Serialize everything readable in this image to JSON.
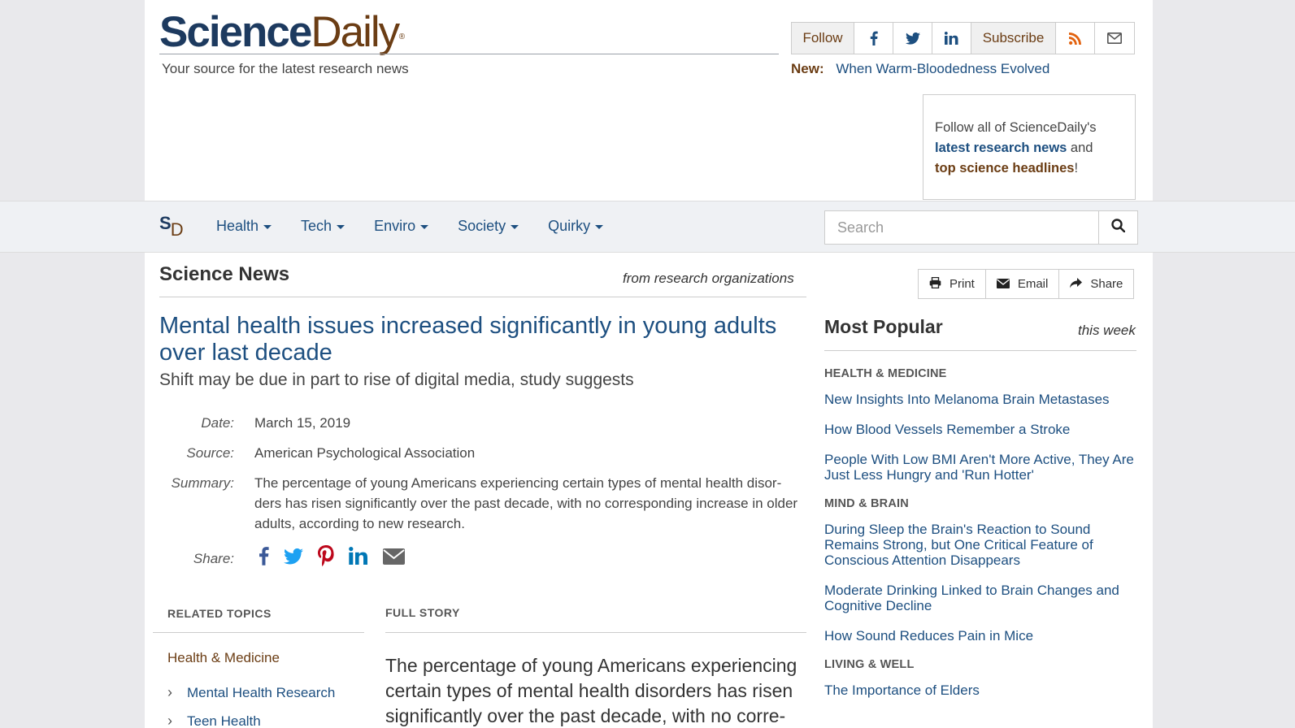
{
  "header": {
    "logo_science": "Science",
    "logo_daily": "Daily",
    "logo_reg": "®",
    "tagline": "Your source for the latest research news",
    "follow_label": "Follow",
    "subscribe_label": "Subscribe",
    "social_icons": [
      "facebook-icon",
      "twitter-icon",
      "linkedin-icon"
    ],
    "new_label": "New:",
    "new_link": "When Warm-Bloodedness Evolved",
    "follow_box": {
      "pre": "Follow all of ScienceDaily's",
      "link1": "latest research news",
      "mid": " and",
      "link2": "top science headlines",
      "post": "!"
    }
  },
  "nav": {
    "mark_s": "S",
    "mark_d": "D",
    "items": [
      {
        "label": "Health"
      },
      {
        "label": "Tech"
      },
      {
        "label": "Enviro"
      },
      {
        "label": "Society"
      },
      {
        "label": "Quirky"
      }
    ],
    "search_placeholder": "Search"
  },
  "main": {
    "section_title": "Science News",
    "section_sub": "from research organizations",
    "headline": "Mental health issues increased significantly in young adults over last decade",
    "subhead": "Shift may be due in part to rise of digital media, study suggests",
    "meta": {
      "date_label": "Date:",
      "date": "March 15, 2019",
      "source_label": "Source:",
      "source": "American Psychological Association",
      "summary_label": "Summary:",
      "summary": "The percentage of young Americans experiencing certain types of mental health disor-ders has risen significantly over the past decade, with no corresponding increase in older adults, according to new research.",
      "share_label": "Share:"
    },
    "related_topics": {
      "heading": "RELATED TOPICS",
      "category": "Health & Medicine",
      "items": [
        "Mental Health Research",
        "Teen Health"
      ]
    },
    "full_story": {
      "heading": "FULL STORY",
      "body": "The percentage of young Americans experiencing certain types of mental health disorders has risen significantly over the past decade, with no corre-"
    }
  },
  "sidebar": {
    "tools": {
      "print": "Print",
      "email": "Email",
      "share": "Share"
    },
    "most_popular": "Most Popular",
    "period": "this week",
    "groups": [
      {
        "category": "HEALTH & MEDICINE",
        "links": [
          "New Insights Into Melanoma Brain Metastases",
          "How Blood Vessels Remember a Stroke",
          "People With Low BMI Aren't More Active, They Are Just Less Hungry and 'Run Hotter'"
        ]
      },
      {
        "category": "MIND & BRAIN",
        "links": [
          "During Sleep the Brain's Reaction to Sound Remains Strong, but One Critical Feature of Conscious Attention Disappears",
          "Moderate Drinking Linked to Brain Changes and Cognitive Decline",
          "How Sound Reduces Pain in Mice"
        ]
      },
      {
        "category": "LIVING & WELL",
        "links": [
          "The Importance of Elders"
        ]
      }
    ]
  },
  "colors": {
    "brand_navy": "#1d3a5f",
    "brand_brown": "#6b3d14",
    "link_blue": "#1d4f80",
    "facebook": "#3b5998",
    "twitter": "#1da1f2",
    "pinterest": "#bd081c",
    "linkedin": "#0077b5",
    "rss": "#e2620f"
  }
}
